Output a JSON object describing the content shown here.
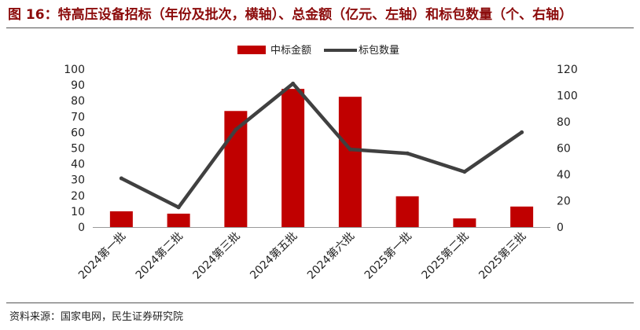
{
  "header": {
    "title": "图 16：特高压设备招标（年份及批次，横轴）、总金额（亿元、左轴）和标包数量（个、右轴）"
  },
  "footer": {
    "source": "资料来源：国家电网，民生证券研究院"
  },
  "colors": {
    "bar": "#c00000",
    "line": "#404040",
    "title": "#8c0c0c"
  },
  "chart_data": {
    "type": "bar+line",
    "categories": [
      "2024第一批",
      "2024第二批",
      "2024第三批",
      "2024第五批",
      "2024第六批",
      "2025第一批",
      "2025第二批",
      "2025第三批"
    ],
    "series": [
      {
        "name": "中标金额",
        "type": "bar",
        "axis": "left",
        "values": [
          10,
          8.5,
          73.5,
          87.5,
          82.5,
          19.5,
          5.5,
          13
        ]
      },
      {
        "name": "标包数量",
        "type": "line",
        "axis": "right",
        "values": [
          37,
          15,
          74,
          109,
          59,
          56,
          42,
          72
        ]
      }
    ],
    "left_axis": {
      "ylim": [
        0,
        100
      ],
      "ticks": [
        "0",
        "10",
        "20",
        "30",
        "40",
        "50",
        "60",
        "70",
        "80",
        "90",
        "100"
      ]
    },
    "right_axis": {
      "ylim": [
        0,
        120
      ],
      "ticks": [
        "0",
        "20",
        "40",
        "60",
        "80",
        "100",
        "120"
      ]
    },
    "legend": {
      "position": "top-center",
      "items": [
        "中标金额",
        "标包数量"
      ]
    },
    "grid": false
  }
}
